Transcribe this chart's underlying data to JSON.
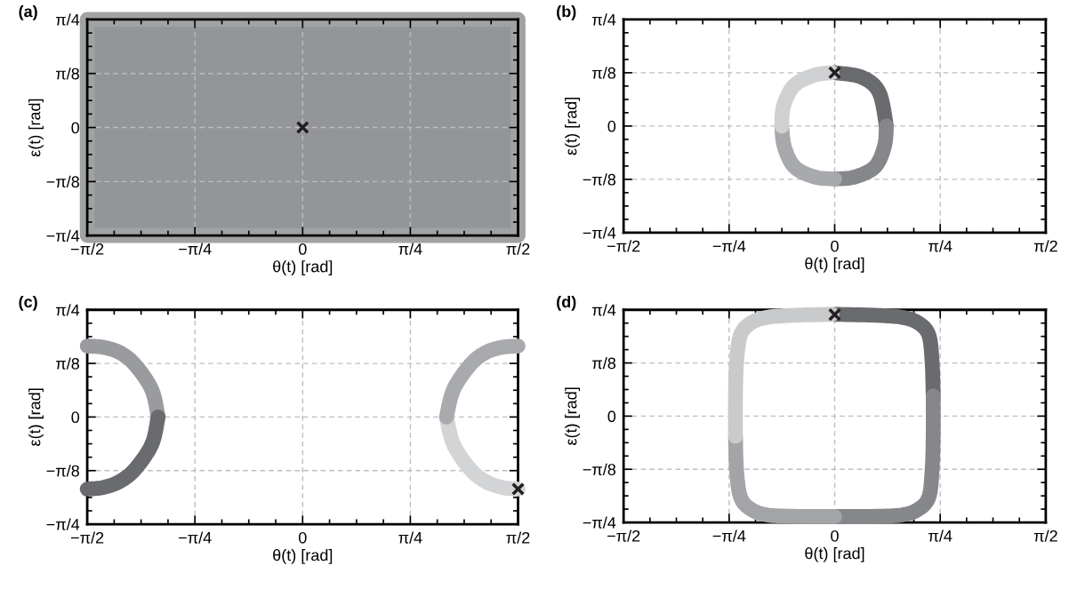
{
  "chart_data": [
    {
      "type": "scatter",
      "title": "(a)",
      "xlabel": "θ(t) [rad]",
      "ylabel": "ε(t) [rad]",
      "xlim": [
        -1.5708,
        1.5708
      ],
      "ylim": [
        -0.7854,
        0.7854
      ],
      "xticks": [
        {
          "value": -1.5708,
          "label": "−π/2"
        },
        {
          "value": -1.3744,
          "label": null
        },
        {
          "value": -1.1781,
          "label": null
        },
        {
          "value": -0.9817,
          "label": null
        },
        {
          "value": -0.7854,
          "label": "−π/4"
        },
        {
          "value": -0.589,
          "label": null
        },
        {
          "value": -0.3927,
          "label": null
        },
        {
          "value": -0.1963,
          "label": null
        },
        0,
        {
          "value": 0.1963,
          "label": null
        },
        {
          "value": 0.3927,
          "label": null
        },
        {
          "value": 0.589,
          "label": null
        },
        {
          "value": 0.7854,
          "label": "π/4"
        },
        {
          "value": 0.9817,
          "label": null
        },
        {
          "value": 1.1781,
          "label": null
        },
        {
          "value": 1.3744,
          "label": null
        },
        {
          "value": 1.5708,
          "label": "π/2"
        }
      ],
      "yticks": [
        {
          "value": -0.7854,
          "label": "−π/4"
        },
        {
          "value": -0.6872,
          "label": null
        },
        {
          "value": -0.589,
          "label": null
        },
        {
          "value": -0.4909,
          "label": null
        },
        {
          "value": -0.3927,
          "label": "−π/8"
        },
        {
          "value": -0.2945,
          "label": null
        },
        {
          "value": -0.1963,
          "label": null
        },
        {
          "value": -0.0982,
          "label": null
        },
        0,
        {
          "value": 0.0982,
          "label": null
        },
        {
          "value": 0.1963,
          "label": null
        },
        {
          "value": 0.2945,
          "label": null
        },
        {
          "value": 0.3927,
          "label": "π/8"
        },
        {
          "value": 0.4909,
          "label": null
        },
        {
          "value": 0.589,
          "label": null
        },
        {
          "value": 0.6872,
          "label": null
        },
        {
          "value": 0.7854,
          "label": "π/4"
        }
      ],
      "grid": true,
      "marker": "cross",
      "bands": [
        {
          "axis": "y",
          "from": -0.7854,
          "to": 0.7854,
          "color": "#939598"
        }
      ],
      "series": [
        {
          "color": "#231f20",
          "x": [
            0
          ],
          "values": [
            0
          ]
        }
      ]
    },
    {
      "type": "line",
      "title": "(b)",
      "xlabel": "θ(t) [rad]",
      "ylabel": "ε(t) [rad]",
      "xlim": [
        -1.5708,
        1.5708
      ],
      "ylim": [
        -0.7854,
        0.7854
      ],
      "xticks": [
        {
          "value": -1.5708,
          "label": "−π/2"
        },
        {
          "value": -1.3744,
          "label": null
        },
        {
          "value": -1.1781,
          "label": null
        },
        {
          "value": -0.9817,
          "label": null
        },
        {
          "value": -0.7854,
          "label": "−π/4"
        },
        {
          "value": -0.589,
          "label": null
        },
        {
          "value": -0.3927,
          "label": null
        },
        {
          "value": -0.1963,
          "label": null
        },
        0,
        {
          "value": 0.1963,
          "label": null
        },
        {
          "value": 0.3927,
          "label": null
        },
        {
          "value": 0.589,
          "label": null
        },
        {
          "value": 0.7854,
          "label": "π/4"
        },
        {
          "value": 0.9817,
          "label": null
        },
        {
          "value": 1.1781,
          "label": null
        },
        {
          "value": 1.3744,
          "label": null
        },
        {
          "value": 1.5708,
          "label": "π/2"
        }
      ],
      "yticks": [
        {
          "value": -0.7854,
          "label": "−π/4"
        },
        {
          "value": -0.6872,
          "label": null
        },
        {
          "value": -0.589,
          "label": null
        },
        {
          "value": -0.4909,
          "label": null
        },
        {
          "value": -0.3927,
          "label": "−π/8"
        },
        {
          "value": -0.2945,
          "label": null
        },
        {
          "value": -0.1963,
          "label": null
        },
        {
          "value": -0.0982,
          "label": null
        },
        0,
        {
          "value": 0.0982,
          "label": null
        },
        {
          "value": 0.1963,
          "label": null
        },
        {
          "value": 0.2945,
          "label": null
        },
        {
          "value": 0.3927,
          "label": "π/8"
        },
        {
          "value": 0.4909,
          "label": null
        },
        {
          "value": 0.589,
          "label": null
        },
        {
          "value": 0.6872,
          "label": null
        },
        {
          "value": 0.7854,
          "label": "π/4"
        }
      ],
      "grid": true,
      "marker": "none",
      "line_style": "solid",
      "series": [
        {
          "type": "line",
          "color": "#6a6b6e",
          "x": [
            0,
            0.2,
            0.33,
            0.385
          ],
          "values": [
            0.393,
            0.36,
            0.25,
            0.0
          ]
        },
        {
          "type": "line",
          "color": "#86878a",
          "x": [
            0.385,
            0.37,
            0.3,
            0.15,
            0
          ],
          "values": [
            0.0,
            -0.15,
            -0.3,
            -0.375,
            -0.39
          ]
        },
        {
          "type": "line",
          "color": "#a8a9ac",
          "x": [
            0,
            -0.15,
            -0.3,
            -0.375,
            -0.394
          ],
          "values": [
            -0.39,
            -0.375,
            -0.3,
            -0.15,
            0.0
          ]
        },
        {
          "type": "line",
          "color": "#cfd0d2",
          "x": [
            -0.394,
            -0.38,
            -0.3,
            -0.15,
            -0.02
          ],
          "values": [
            0.0,
            0.15,
            0.3,
            0.375,
            0.393
          ]
        },
        {
          "type": "scatter",
          "marker": "cross",
          "color": "#231f20",
          "x": [
            0
          ],
          "values": [
            0.393
          ]
        }
      ]
    },
    {
      "type": "line",
      "title": "(c)",
      "xlabel": "θ(t) [rad]",
      "ylabel": "ε(t) [rad]",
      "xlim": [
        -1.5708,
        1.5708
      ],
      "ylim": [
        -0.7854,
        0.7854
      ],
      "xticks": [
        {
          "value": -1.5708,
          "label": "−π/2"
        },
        {
          "value": -1.3744,
          "label": null
        },
        {
          "value": -1.1781,
          "label": null
        },
        {
          "value": -0.9817,
          "label": null
        },
        {
          "value": -0.7854,
          "label": "−π/4"
        },
        {
          "value": -0.589,
          "label": null
        },
        {
          "value": -0.3927,
          "label": null
        },
        {
          "value": -0.1963,
          "label": null
        },
        0,
        {
          "value": 0.1963,
          "label": null
        },
        {
          "value": 0.3927,
          "label": null
        },
        {
          "value": 0.589,
          "label": null
        },
        {
          "value": 0.7854,
          "label": "π/4"
        },
        {
          "value": 0.9817,
          "label": null
        },
        {
          "value": 1.1781,
          "label": null
        },
        {
          "value": 1.3744,
          "label": null
        },
        {
          "value": 1.5708,
          "label": "π/2"
        }
      ],
      "yticks": [
        {
          "value": -0.7854,
          "label": "−π/4"
        },
        {
          "value": -0.6872,
          "label": null
        },
        {
          "value": -0.589,
          "label": null
        },
        {
          "value": -0.4909,
          "label": null
        },
        {
          "value": -0.3927,
          "label": "−π/8"
        },
        {
          "value": -0.2945,
          "label": null
        },
        {
          "value": -0.1963,
          "label": null
        },
        {
          "value": -0.0982,
          "label": null
        },
        0,
        {
          "value": 0.0982,
          "label": null
        },
        {
          "value": 0.1963,
          "label": null
        },
        {
          "value": 0.2945,
          "label": null
        },
        {
          "value": 0.3927,
          "label": "π/8"
        },
        {
          "value": 0.4909,
          "label": null
        },
        {
          "value": 0.589,
          "label": null
        },
        {
          "value": 0.6872,
          "label": null
        },
        {
          "value": 0.7854,
          "label": "π/4"
        }
      ],
      "grid": true,
      "marker": "none",
      "line_style": "solid",
      "series": [
        {
          "type": "line",
          "color": "#d3d4d6",
          "x": [
            1.5708,
            1.45,
            1.33,
            1.22,
            1.1,
            1.049
          ],
          "values": [
            -0.528,
            -0.515,
            -0.47,
            -0.38,
            -0.2,
            0.0
          ]
        },
        {
          "type": "line",
          "color": "#a9aaad",
          "x": [
            1.049,
            1.1,
            1.22,
            1.33,
            1.45,
            1.5708
          ],
          "values": [
            0.0,
            0.2,
            0.38,
            0.47,
            0.51,
            0.52
          ]
        },
        {
          "type": "line",
          "color": "#9a9b9e",
          "x": [
            -1.5708,
            -1.45,
            -1.33,
            -1.22,
            -1.1,
            -1.054
          ],
          "values": [
            0.52,
            0.51,
            0.47,
            0.38,
            0.2,
            0.0
          ]
        },
        {
          "type": "line",
          "color": "#6a6b6e",
          "x": [
            -1.054,
            -1.1,
            -1.22,
            -1.33,
            -1.45,
            -1.5708
          ],
          "values": [
            0.0,
            -0.2,
            -0.38,
            -0.47,
            -0.515,
            -0.528
          ]
        },
        {
          "type": "scatter",
          "marker": "cross",
          "color": "#231f20",
          "x": [
            1.5708
          ],
          "values": [
            -0.528
          ]
        }
      ]
    },
    {
      "type": "line",
      "title": "(d)",
      "xlabel": "θ(t) [rad]",
      "ylabel": "ε(t) [rad]",
      "xlim": [
        -1.5708,
        1.5708
      ],
      "ylim": [
        -0.7854,
        0.7854
      ],
      "xticks": [
        {
          "value": -1.5708,
          "label": "−π/2"
        },
        {
          "value": -1.3744,
          "label": null
        },
        {
          "value": -1.1781,
          "label": null
        },
        {
          "value": -0.9817,
          "label": null
        },
        {
          "value": -0.7854,
          "label": "−π/4"
        },
        {
          "value": -0.589,
          "label": null
        },
        {
          "value": -0.3927,
          "label": null
        },
        {
          "value": -0.1963,
          "label": null
        },
        0,
        {
          "value": 0.1963,
          "label": null
        },
        {
          "value": 0.3927,
          "label": null
        },
        {
          "value": 0.589,
          "label": null
        },
        {
          "value": 0.7854,
          "label": "π/4"
        },
        {
          "value": 0.9817,
          "label": null
        },
        {
          "value": 1.1781,
          "label": null
        },
        {
          "value": 1.3744,
          "label": null
        },
        {
          "value": 1.5708,
          "label": "π/2"
        }
      ],
      "yticks": [
        {
          "value": -0.7854,
          "label": "−π/4"
        },
        {
          "value": -0.6872,
          "label": null
        },
        {
          "value": -0.589,
          "label": null
        },
        {
          "value": -0.4909,
          "label": null
        },
        {
          "value": -0.3927,
          "label": "−π/8"
        },
        {
          "value": -0.2945,
          "label": null
        },
        {
          "value": -0.1963,
          "label": null
        },
        {
          "value": -0.0982,
          "label": null
        },
        0,
        {
          "value": 0.0982,
          "label": null
        },
        {
          "value": 0.1963,
          "label": null
        },
        {
          "value": 0.2945,
          "label": null
        },
        {
          "value": 0.3927,
          "label": "π/8"
        },
        {
          "value": 0.4909,
          "label": null
        },
        {
          "value": 0.589,
          "label": null
        },
        {
          "value": 0.6872,
          "label": null
        },
        {
          "value": 0.7854,
          "label": "π/4"
        }
      ],
      "grid": true,
      "marker": "none",
      "line_style": "solid",
      "series": [
        {
          "type": "line",
          "color": "#6a6b6e",
          "x": [
            0,
            0.3,
            0.5,
            0.62,
            0.7,
            0.725,
            0.733
          ],
          "values": [
            0.752,
            0.745,
            0.73,
            0.69,
            0.6,
            0.4,
            0.15
          ]
        },
        {
          "type": "line",
          "color": "#86878a",
          "x": [
            0.733,
            0.733,
            0.725,
            0.7,
            0.62,
            0.5,
            0.3,
            0
          ],
          "values": [
            0.15,
            -0.15,
            -0.4,
            -0.6,
            -0.69,
            -0.73,
            -0.74,
            -0.742
          ]
        },
        {
          "type": "line",
          "color": "#a3a4a7",
          "x": [
            0,
            -0.3,
            -0.5,
            -0.62,
            -0.7,
            -0.73,
            -0.738
          ],
          "values": [
            -0.742,
            -0.74,
            -0.73,
            -0.69,
            -0.6,
            -0.4,
            -0.15
          ]
        },
        {
          "type": "line",
          "color": "#c9cacc",
          "x": [
            -0.738,
            -0.738,
            -0.73,
            -0.7,
            -0.62,
            -0.5,
            -0.3,
            -0.02
          ],
          "values": [
            -0.15,
            0.15,
            0.4,
            0.6,
            0.69,
            0.73,
            0.745,
            0.752
          ]
        },
        {
          "type": "scatter",
          "marker": "cross",
          "color": "#231f20",
          "x": [
            0
          ],
          "values": [
            0.75
          ]
        }
      ]
    }
  ]
}
